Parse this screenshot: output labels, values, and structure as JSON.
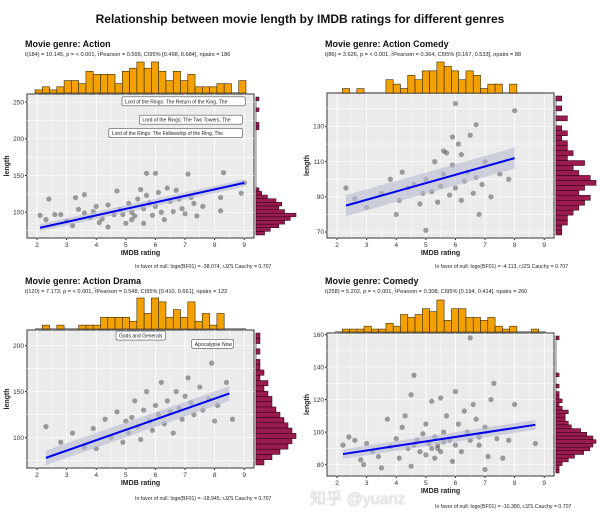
{
  "title": "Relationship between movie length by IMDB ratings for different genres",
  "watermark": "知乎 @yuanz",
  "colors": {
    "top_hist": "#F2A100",
    "right_hist": "#9B1B4F",
    "line": "#0000EE",
    "band": "#B8BCD0",
    "panel_bg": "#EBEBEB",
    "point": "#333333"
  },
  "chart_data": [
    {
      "type": "scatter",
      "title": "Movie genre: Action",
      "subtitle": "t(184) = 10.145, p = < 0.001, r̂Pearson = 0.599, CI95% [0.498, 0.684], npairs = 186",
      "caption": "In favor of null: loge(BF01) = -38.074, rJZS Cauchy = 0.707",
      "xlabel": "IMDB rating",
      "ylabel": "length",
      "xlim": [
        1.66,
        9.33
      ],
      "ylim": [
        65,
        261
      ],
      "xticks": [
        2,
        3,
        4,
        5,
        6,
        7,
        8,
        9
      ],
      "yticks": [
        100,
        150,
        200,
        250
      ],
      "fit": [
        [
          2.1,
          79
        ],
        [
          9,
          140
        ]
      ],
      "band_halfwidth": 5,
      "labels": [
        {
          "text": "Lord of the Rings: The Return of the King, The",
          "x": 8.9,
          "y": 251
        },
        {
          "text": "Lord of the Rings: The Two Towers, The",
          "x": 8.8,
          "y": 226
        },
        {
          "text": "Lord of the Rings: The Fellowship of the Ring, The",
          "x": 8.8,
          "y": 208
        }
      ],
      "points": [
        [
          2.1,
          96
        ],
        [
          2.3,
          90
        ],
        [
          2.4,
          118
        ],
        [
          2.6,
          97
        ],
        [
          2.8,
          97
        ],
        [
          3.0,
          88
        ],
        [
          3.2,
          82
        ],
        [
          3.3,
          120
        ],
        [
          3.4,
          104
        ],
        [
          3.6,
          124
        ],
        [
          3.6,
          99
        ],
        [
          3.8,
          93
        ],
        [
          3.9,
          101
        ],
        [
          4.0,
          108
        ],
        [
          4.1,
          86
        ],
        [
          4.2,
          91
        ],
        [
          4.4,
          80
        ],
        [
          4.4,
          110
        ],
        [
          4.6,
          97
        ],
        [
          4.7,
          129
        ],
        [
          4.8,
          104
        ],
        [
          5.0,
          85
        ],
        [
          5.1,
          112
        ],
        [
          5.2,
          100
        ],
        [
          5.3,
          95
        ],
        [
          5.4,
          118
        ],
        [
          5.5,
          131
        ],
        [
          5.6,
          105
        ],
        [
          5.7,
          153
        ],
        [
          5.7,
          123
        ],
        [
          5.8,
          113
        ],
        [
          5.9,
          96
        ],
        [
          6.0,
          153
        ],
        [
          6.1,
          127
        ],
        [
          6.2,
          100
        ],
        [
          6.3,
          90
        ],
        [
          6.4,
          133
        ],
        [
          6.5,
          115
        ],
        [
          6.6,
          101
        ],
        [
          6.8,
          118
        ],
        [
          6.9,
          105
        ],
        [
          7.0,
          98
        ],
        [
          7.1,
          152
        ],
        [
          7.2,
          120
        ],
        [
          7.4,
          95
        ],
        [
          7.6,
          108
        ],
        [
          8.2,
          102
        ],
        [
          8.2,
          120
        ],
        [
          8.3,
          154
        ],
        [
          8.9,
          126
        ],
        [
          9.0,
          140
        ],
        [
          8.8,
          250
        ],
        [
          8.8,
          226
        ],
        [
          8.8,
          208
        ],
        [
          5.2,
          90
        ],
        [
          6.0,
          108
        ],
        [
          4.9,
          97
        ],
        [
          5.6,
          85
        ],
        [
          6.7,
          130
        ],
        [
          7.3,
          112
        ]
      ],
      "top_hist": [
        1,
        2,
        1,
        2,
        4,
        4,
        3,
        7,
        6,
        6,
        6,
        3,
        7,
        8,
        10,
        8,
        10,
        7,
        4,
        7,
        4,
        6,
        2,
        2,
        2,
        3,
        3,
        0,
        4
      ],
      "right_hist": [
        3,
        5,
        8,
        10,
        12,
        14,
        10,
        8,
        9,
        7,
        4,
        2,
        1,
        0,
        0,
        0,
        0,
        0,
        0,
        0,
        0,
        0,
        0,
        0,
        0,
        0,
        0,
        0,
        0,
        1,
        1,
        0,
        0,
        0,
        1,
        0,
        0,
        1
      ]
    },
    {
      "type": "scatter",
      "title": "Movie genre: Action Comedy",
      "subtitle": "t(86) = 3.626, p = < 0.001, r̂Pearson = 0.364, CI95% [0.167, 0.533], npairs = 88",
      "caption": "In favor of null: loge(BF01) = -4.113, rJZS Cauchy = 0.707",
      "xlabel": "IMDB rating",
      "ylabel": "length",
      "xlim": [
        1.66,
        9.33
      ],
      "ylim": [
        66.6,
        149
      ],
      "xticks": [
        2,
        3,
        4,
        5,
        6,
        7,
        8,
        9
      ],
      "yticks": [
        70,
        90,
        110,
        130
      ],
      "fit": [
        [
          2.3,
          85
        ],
        [
          8,
          112
        ]
      ],
      "band_halfwidth": 6,
      "labels": [],
      "points": [
        [
          2.3,
          95
        ],
        [
          2.6,
          89
        ],
        [
          3.0,
          84
        ],
        [
          3.5,
          92
        ],
        [
          3.8,
          100
        ],
        [
          4.0,
          80
        ],
        [
          4.1,
          88
        ],
        [
          4.2,
          104
        ],
        [
          4.4,
          95
        ],
        [
          4.6,
          97
        ],
        [
          4.8,
          86
        ],
        [
          5.0,
          71
        ],
        [
          5.0,
          100
        ],
        [
          5.2,
          93
        ],
        [
          5.3,
          110
        ],
        [
          5.4,
          87
        ],
        [
          5.5,
          96
        ],
        [
          5.6,
          103
        ],
        [
          5.7,
          115
        ],
        [
          5.8,
          91
        ],
        [
          5.9,
          108
        ],
        [
          6.0,
          95
        ],
        [
          6.1,
          120
        ],
        [
          6.2,
          88
        ],
        [
          6.3,
          99
        ],
        [
          6.4,
          104
        ],
        [
          6.5,
          125
        ],
        [
          6.6,
          92
        ],
        [
          6.7,
          101
        ],
        [
          6.8,
          80
        ],
        [
          6.9,
          97
        ],
        [
          7.0,
          110
        ],
        [
          7.2,
          90
        ],
        [
          7.5,
          103
        ],
        [
          7.8,
          100
        ],
        [
          8.0,
          139
        ],
        [
          6.0,
          143
        ],
        [
          5.9,
          124
        ],
        [
          6.7,
          131
        ],
        [
          5.6,
          116
        ],
        [
          6.2,
          114
        ],
        [
          4.9,
          92
        ]
      ],
      "top_hist": [
        0,
        1,
        0,
        1,
        0,
        0,
        0,
        3,
        2,
        1,
        4,
        3,
        5,
        5,
        7,
        6,
        5,
        3,
        5,
        4,
        1,
        2,
        2,
        0,
        2,
        0,
        0,
        0,
        0
      ],
      "right_hist": [
        1,
        1,
        2,
        2,
        3,
        4,
        5,
        6,
        4,
        5,
        7,
        6,
        4,
        3,
        5,
        2,
        3,
        2,
        2,
        1,
        2,
        1,
        0,
        2,
        0,
        1,
        0,
        1
      ]
    },
    {
      "type": "scatter",
      "title": "Movie genre: Action Drama",
      "subtitle": "t(120) = 7.173, p = < 0.001, r̂Pearson = 0.548, CI95% [0.410, 0.661], npairs = 122",
      "caption": "In favor of null: loge(BF01) = -18.945, rJZS Cauchy = 0.707",
      "xlabel": "IMDB rating",
      "ylabel": "length",
      "xlim": [
        1.66,
        9.33
      ],
      "ylim": [
        67,
        217
      ],
      "xticks": [
        2,
        3,
        4,
        5,
        6,
        7,
        8,
        9
      ],
      "yticks": [
        100,
        150,
        200
      ],
      "fit": [
        [
          2.3,
          78
        ],
        [
          8.5,
          148
        ]
      ],
      "band_halfwidth": 8,
      "labels": [
        {
          "text": "Gods and Generals",
          "x": 6.2,
          "y": 211
        },
        {
          "text": "Apocalypse Now",
          "x": 8.5,
          "y": 202
        }
      ],
      "points": [
        [
          2.3,
          112
        ],
        [
          2.8,
          95
        ],
        [
          3.2,
          105
        ],
        [
          3.6,
          90
        ],
        [
          3.9,
          110
        ],
        [
          4.0,
          88
        ],
        [
          4.3,
          120
        ],
        [
          4.5,
          100
        ],
        [
          4.7,
          128
        ],
        [
          4.9,
          95
        ],
        [
          5.0,
          118
        ],
        [
          5.1,
          105
        ],
        [
          5.3,
          140
        ],
        [
          5.4,
          112
        ],
        [
          5.5,
          98
        ],
        [
          5.6,
          130
        ],
        [
          5.7,
          150
        ],
        [
          5.8,
          118
        ],
        [
          5.9,
          108
        ],
        [
          6.0,
          135
        ],
        [
          6.1,
          125
        ],
        [
          6.2,
          160
        ],
        [
          6.3,
          115
        ],
        [
          6.4,
          140
        ],
        [
          6.5,
          128
        ],
        [
          6.6,
          105
        ],
        [
          6.7,
          150
        ],
        [
          6.8,
          132
        ],
        [
          6.9,
          120
        ],
        [
          7.0,
          145
        ],
        [
          7.1,
          165
        ],
        [
          7.2,
          138
        ],
        [
          7.3,
          125
        ],
        [
          7.5,
          155
        ],
        [
          7.6,
          130
        ],
        [
          7.8,
          142
        ],
        [
          8.0,
          118
        ],
        [
          8.1,
          135
        ],
        [
          8.4,
          160
        ],
        [
          8.5,
          201
        ],
        [
          6.2,
          211
        ],
        [
          7.9,
          181
        ],
        [
          8.6,
          120
        ],
        [
          5.2,
          122
        ]
      ],
      "top_hist": [
        0,
        1,
        0,
        1,
        0,
        0,
        1,
        1,
        1,
        3,
        3,
        3,
        3,
        2,
        8,
        4,
        8,
        7,
        3,
        5,
        3,
        7,
        2,
        4,
        1,
        4,
        0,
        0,
        0
      ],
      "right_hist": [
        2,
        4,
        6,
        8,
        9,
        10,
        9,
        8,
        7,
        6,
        5,
        4,
        4,
        3,
        2,
        3,
        1,
        2,
        1,
        1,
        0,
        1,
        0,
        1,
        1
      ]
    },
    {
      "type": "scatter",
      "title": "Movie genre: Comedy",
      "subtitle": "t(258) = 5.202, p = < 0.001, r̂Pearson = 0.308, CI95% [0.194, 0.414], npairs = 260",
      "caption": "In favor of null: loge(BF01) = -10.380, rJZS Cauchy = 0.707",
      "xlabel": "IMDB rating",
      "ylabel": "length",
      "xlim": [
        1.66,
        9.33
      ],
      "ylim": [
        73,
        161
      ],
      "xticks": [
        2,
        3,
        4,
        5,
        6,
        7,
        8,
        9
      ],
      "yticks": [
        80,
        100,
        120,
        140,
        160
      ],
      "fit": [
        [
          2.2,
          86.5
        ],
        [
          8.7,
          104.5
        ]
      ],
      "band_halfwidth": 3,
      "labels": [],
      "points": [
        [
          2.2,
          92
        ],
        [
          2.4,
          97
        ],
        [
          2.6,
          95
        ],
        [
          2.8,
          83
        ],
        [
          2.9,
          80
        ],
        [
          3.0,
          93
        ],
        [
          3.2,
          88
        ],
        [
          3.4,
          85
        ],
        [
          3.5,
          78
        ],
        [
          3.7,
          108
        ],
        [
          3.8,
          91
        ],
        [
          4.0,
          96
        ],
        [
          4.1,
          84
        ],
        [
          4.2,
          103
        ],
        [
          4.3,
          110
        ],
        [
          4.4,
          90
        ],
        [
          4.5,
          123
        ],
        [
          4.5,
          79
        ],
        [
          4.6,
          135
        ],
        [
          4.7,
          95
        ],
        [
          4.8,
          88
        ],
        [
          4.9,
          99
        ],
        [
          5.0,
          105
        ],
        [
          5.0,
          86
        ],
        [
          5.1,
          93
        ],
        [
          5.2,
          119
        ],
        [
          5.3,
          84
        ],
        [
          5.3,
          97
        ],
        [
          5.4,
          90
        ],
        [
          5.5,
          121
        ],
        [
          5.5,
          88
        ],
        [
          5.6,
          100
        ],
        [
          5.7,
          110
        ],
        [
          5.8,
          95
        ],
        [
          5.9,
          82
        ],
        [
          6.0,
          125
        ],
        [
          6.0,
          92
        ],
        [
          6.1,
          105
        ],
        [
          6.2,
          88
        ],
        [
          6.3,
          113
        ],
        [
          6.4,
          100
        ],
        [
          6.5,
          158
        ],
        [
          6.5,
          95
        ],
        [
          6.6,
          117
        ],
        [
          6.7,
          108
        ],
        [
          6.8,
          92
        ],
        [
          7.0,
          77
        ],
        [
          7.0,
          103
        ],
        [
          7.1,
          85
        ],
        [
          7.2,
          120
        ],
        [
          7.3,
          130
        ],
        [
          7.4,
          96
        ],
        [
          7.6,
          84
        ],
        [
          7.8,
          95
        ],
        [
          8.0,
          117
        ],
        [
          8.7,
          93
        ],
        [
          5.4,
          92
        ],
        [
          5.6,
          94
        ],
        [
          5.2,
          90
        ],
        [
          4.6,
          92
        ],
        [
          6.8,
          97
        ]
      ],
      "top_hist": [
        0,
        1,
        1,
        1,
        2,
        1,
        1,
        3,
        2,
        6,
        5,
        6,
        8,
        7,
        11,
        4,
        8,
        8,
        5,
        5,
        4,
        5,
        2,
        1,
        2,
        0,
        0,
        1,
        0
      ],
      "right_hist": [
        1,
        1,
        2,
        4,
        6,
        9,
        11,
        12,
        13,
        12,
        10,
        8,
        5,
        4,
        3,
        3,
        4,
        2,
        1,
        2,
        1,
        1,
        0,
        1,
        0,
        0,
        1,
        0,
        0,
        0,
        0,
        0,
        0,
        0,
        0,
        0,
        1
      ]
    }
  ]
}
